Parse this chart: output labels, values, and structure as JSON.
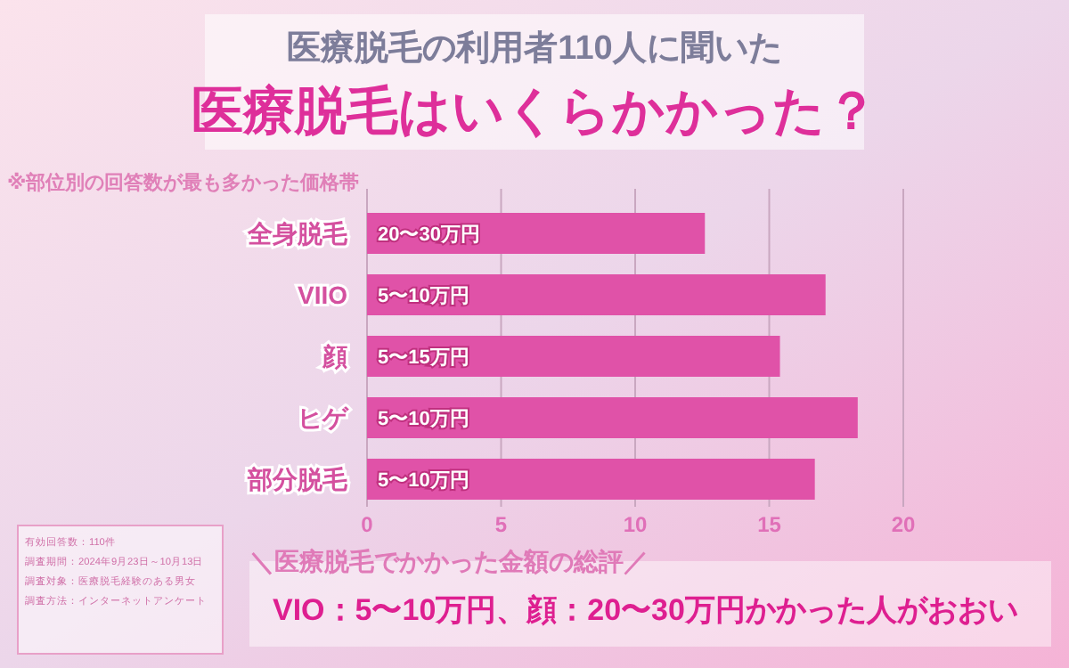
{
  "chart_data": {
    "type": "bar",
    "orientation": "horizontal",
    "title": "医療脱毛の利用者110人に聞いた",
    "subtitle": "医療脱毛はいくらかかった？",
    "categories": [
      "全身脱毛",
      "VIIO",
      "顔",
      "ヒゲ",
      "部分脱毛"
    ],
    "values": [
      12.6,
      17.1,
      15.4,
      18.3,
      16.7
    ],
    "color": "#e052a8",
    "xlim": [
      0,
      20
    ],
    "xticks": [
      0,
      5,
      10,
      15,
      20
    ],
    "grid": "x",
    "annotations": [
      "※部位別の回答数が最も多かった価格帯",
      "有効回答数：110件",
      "調査期間：2024年9月23日～10月13日",
      "調査対象：医療脱毛経験のある男女",
      "調査方法：インターネットアンケート",
      "＼医療脱毛でかかった金額の総評／",
      "VIO：5〜10万円、顔：20〜30万円かかった人がおおい",
      {
        "text": "20〜30万円",
        "y": "全身脱毛"
      },
      {
        "text": "5〜10万円",
        "y": "VIIO"
      },
      {
        "text": "5〜15万円",
        "y": "顔"
      },
      {
        "text": "5〜10万円",
        "y": "ヒゲ"
      },
      {
        "text": "5〜10万円",
        "y": "部分脱毛"
      }
    ]
  }
}
